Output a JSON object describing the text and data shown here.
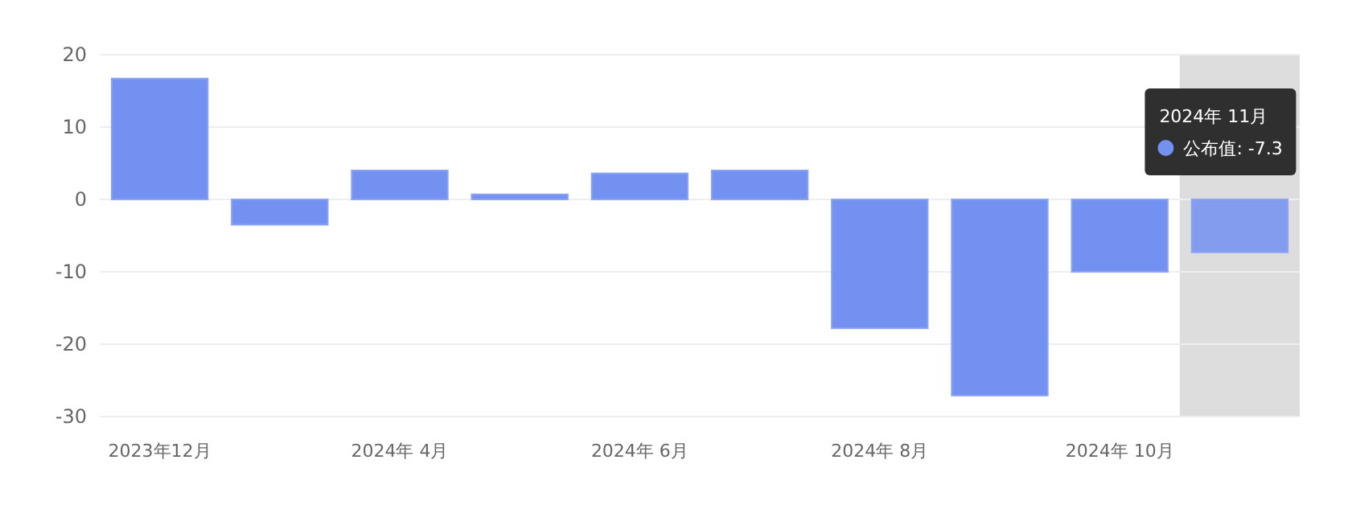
{
  "chart_data": {
    "type": "bar",
    "categories": [
      "2023年12月",
      null,
      "2024年 4月",
      null,
      "2024年 6月",
      null,
      "2024年 8月",
      null,
      "2024年 10月",
      null
    ],
    "series": [
      {
        "color": "#7391f0",
        "values": [
          16.7,
          -3.5,
          4.0,
          0.7,
          3.6,
          4.0,
          -17.8,
          -27.1,
          -10.0,
          -7.3
        ]
      }
    ],
    "ylim": [
      -30,
      20
    ],
    "yticks": [
      -30,
      -20,
      -10,
      0,
      10,
      20
    ],
    "grid": "y",
    "annotations": [
      "2024年 11月",
      "公布值: -7.3"
    ]
  }
}
